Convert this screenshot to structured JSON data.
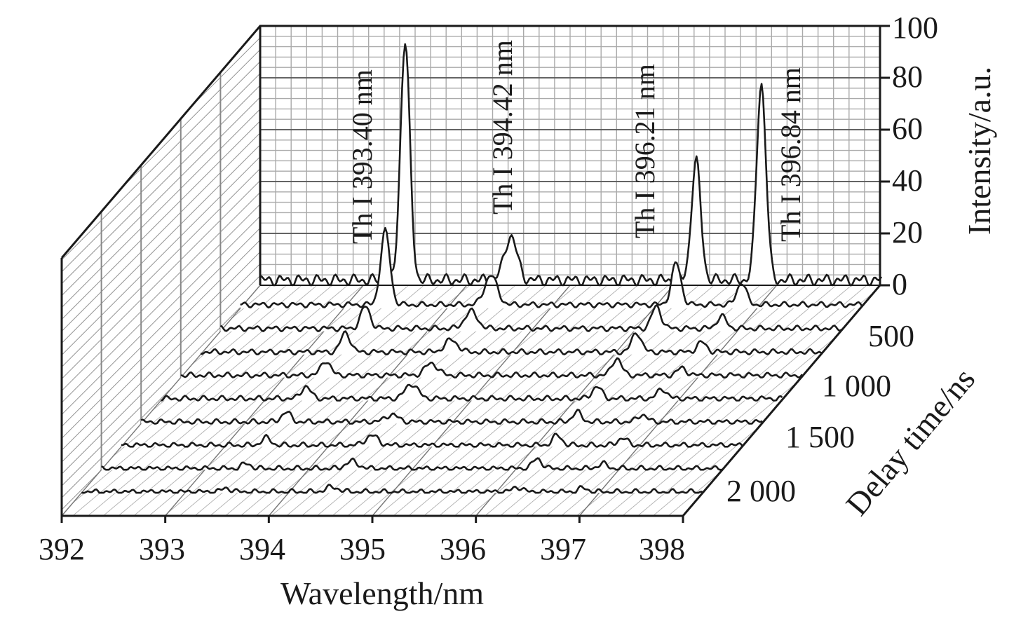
{
  "chart_data": {
    "type": "3d-waterfall-line",
    "xlabel": "Wavelength/nm",
    "zlabel": "Intensity/a.u.",
    "ylabel": "Delay time/ns",
    "x_ticks": [
      "392",
      "393",
      "394",
      "395",
      "396",
      "397",
      "398"
    ],
    "z_ticks": [
      "0",
      "20",
      "40",
      "60",
      "80",
      "100"
    ],
    "y_ticks": [
      "500",
      "1 000",
      "1 500",
      "2 000"
    ],
    "xlim": [
      392,
      398
    ],
    "zlim": [
      0,
      100
    ],
    "peak_labels": [
      "Th I 393.40 nm",
      "Th I 394.42 nm",
      "Th I 396.21 nm",
      "Th I 396.84 nm"
    ],
    "peak_wavelengths": [
      393.4,
      394.42,
      396.21,
      396.84
    ],
    "grid": true,
    "series": [
      {
        "delay_index": 0,
        "baseline": 2,
        "peaks": [
          92,
          17,
          46,
          76
        ]
      },
      {
        "delay_index": 1,
        "baseline": 1.5,
        "peaks": [
          30,
          12,
          17,
          9
        ]
      },
      {
        "delay_index": 2,
        "baseline": 1.2,
        "peaks": [
          9,
          7,
          9,
          5
        ]
      },
      {
        "delay_index": 3,
        "baseline": 1.0,
        "peaks": [
          8,
          5,
          8,
          4
        ]
      },
      {
        "delay_index": 4,
        "baseline": 0.9,
        "peaks": [
          6,
          5,
          7,
          3
        ]
      },
      {
        "delay_index": 5,
        "baseline": 0.8,
        "peaks": [
          5,
          6,
          5,
          4
        ]
      },
      {
        "delay_index": 6,
        "baseline": 0.7,
        "peaks": [
          4,
          3,
          4,
          3
        ]
      },
      {
        "delay_index": 7,
        "baseline": 0.6,
        "peaks": [
          3,
          4,
          4,
          3
        ]
      },
      {
        "delay_index": 8,
        "baseline": 0.5,
        "peaks": [
          2,
          3,
          4,
          2
        ]
      },
      {
        "delay_index": 9,
        "baseline": 0.4,
        "peaks": [
          1.5,
          2,
          2,
          1.5
        ]
      }
    ]
  }
}
